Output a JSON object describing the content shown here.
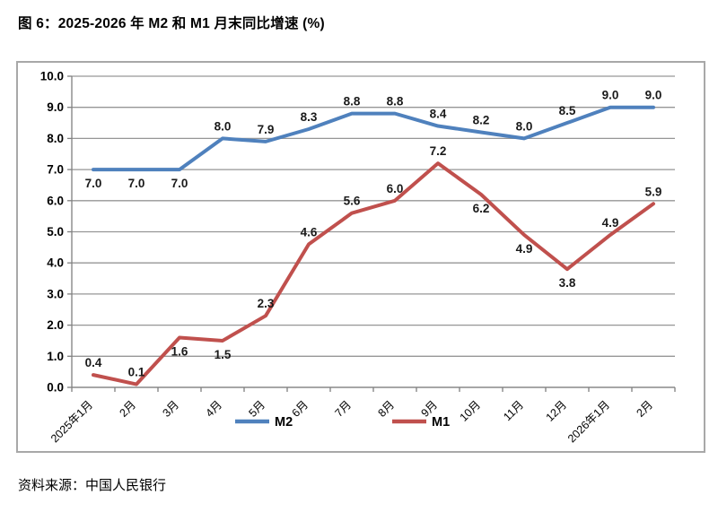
{
  "title": "图 6：2025-2026 年 M2 和 M1 月末同比增速 (%)",
  "source": "资料来源：中国人民银行",
  "colors": {
    "m2_line": "#4F81BD",
    "m1_line": "#C0504D",
    "gridline": "#969696",
    "axis": "#808080",
    "text": "#000000",
    "chart_border": "#A8A8A8"
  },
  "chart_data": {
    "type": "line",
    "title": "图 6：2025-2026 年 M2 和 M1 月末同比增速 (%)",
    "xlabel": "",
    "ylabel": "",
    "categories": [
      "2025年1月",
      "2月",
      "3月",
      "4月",
      "5月",
      "6月",
      "7月",
      "8月",
      "9月",
      "10月",
      "11月",
      "12月",
      "2026年1月",
      "2月"
    ],
    "series": [
      {
        "name": "M2",
        "color": "#4F81BD",
        "values": [
          7.0,
          7.0,
          7.0,
          8.0,
          7.9,
          8.3,
          8.8,
          8.8,
          8.4,
          8.2,
          8.0,
          8.5,
          9.0,
          9.0
        ],
        "label_side": [
          "below",
          "below",
          "below",
          "above",
          "above",
          "above",
          "above",
          "above",
          "above",
          "above",
          "above",
          "above",
          "above",
          "above"
        ]
      },
      {
        "name": "M1",
        "color": "#C0504D",
        "values": [
          0.4,
          0.1,
          1.6,
          1.5,
          2.3,
          4.6,
          5.6,
          6.0,
          7.2,
          6.2,
          4.9,
          3.8,
          4.9,
          5.9
        ],
        "label_side": [
          "above",
          "above",
          "below",
          "below",
          "above",
          "above",
          "above",
          "above",
          "above",
          "below",
          "below",
          "below",
          "above",
          "above"
        ]
      }
    ],
    "ylim": [
      0,
      10
    ],
    "ytick_step": 1,
    "ytick_format": "one_decimal",
    "grid": true,
    "legend_position": "bottom",
    "legend_entries": [
      "M2",
      "M1"
    ]
  }
}
